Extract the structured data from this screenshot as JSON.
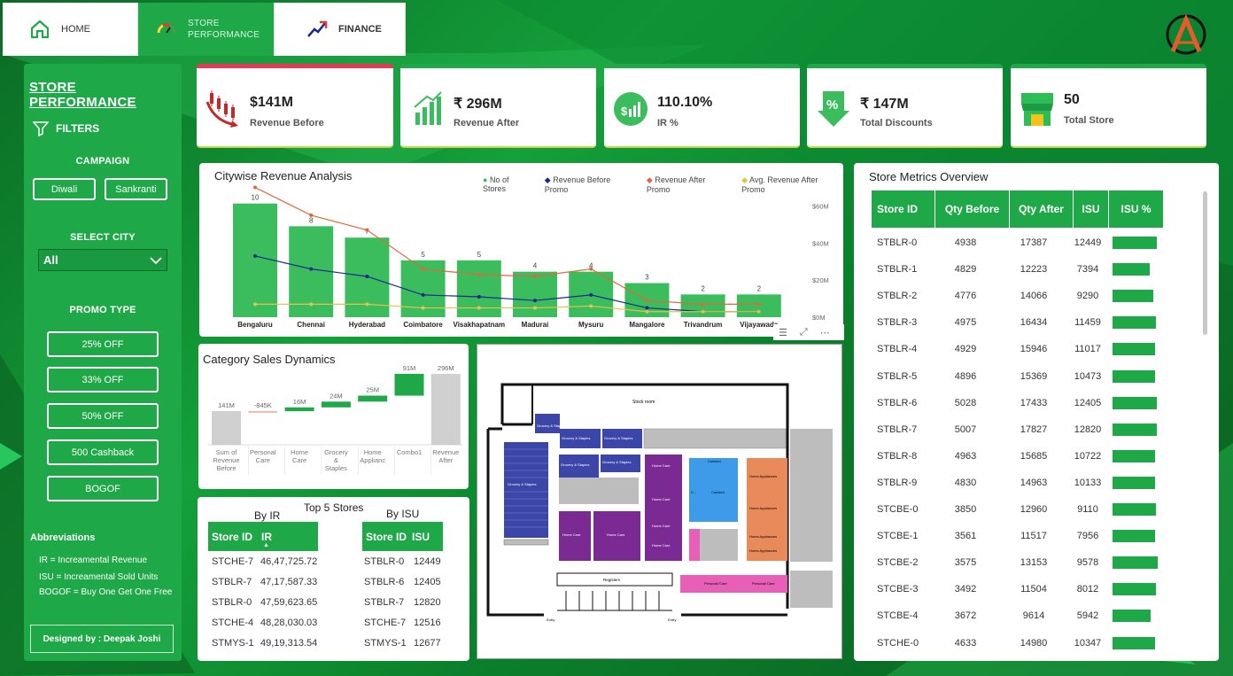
{
  "nav": {
    "home": "HOME",
    "store_performance": "STORE\nPERFORMANCE",
    "finance": "FINANCE"
  },
  "filters": {
    "title": "STORE PERFORMANCE",
    "filters_label": "FILTERS",
    "campaign_label": "CAMPAIGN",
    "campaigns": [
      "Diwali",
      "Sankranti"
    ],
    "city_label": "SELECT CITY",
    "city_value": "All",
    "promo_label": "PROMO TYPE",
    "promo_types": [
      "25% OFF",
      "33% OFF",
      "50% OFF",
      "500 Cashback",
      "BOGOF"
    ],
    "abbr_title": "Abbreviations",
    "abbr": [
      "IR = Increamental Revenue",
      "ISU = Increamental Sold Units",
      "BOGOF = Buy One Get One Free"
    ],
    "designed_by": "Designed by : Deepak Joshi"
  },
  "kpis": [
    {
      "value": "$141M",
      "label": "Revenue Before",
      "icon": "candlestick-down-icon"
    },
    {
      "value": "₹ 296M",
      "label": "Revenue After",
      "icon": "bar-growth-icon"
    },
    {
      "value": "110.10%",
      "label": "IR %",
      "icon": "money-growth-icon"
    },
    {
      "value": "₹ 147M",
      "label": "Total Discounts",
      "icon": "discount-tag-icon"
    },
    {
      "value": "50",
      "label": "Total Store",
      "icon": "store-icon"
    }
  ],
  "city_chart": {
    "title": "Citywise Revenue Analysis",
    "legend": [
      "No of Stores",
      "Revenue Before Promo",
      "Revenue After Promo",
      "Avg. Revenue After Promo"
    ],
    "y_ticks": [
      "$60M",
      "$40M",
      "$20M",
      "$0M"
    ]
  },
  "chart_data": [
    {
      "type": "bar",
      "title": "Citywise Revenue Analysis",
      "categories": [
        "Bengaluru",
        "Chennai",
        "Hyderabad",
        "Coimbatore",
        "Visakhapatnam",
        "Madurai",
        "Mysuru",
        "Mangalore",
        "Trivandrum",
        "Vijayawada"
      ],
      "ylim": [
        0,
        65
      ],
      "legend_position": "top-right",
      "series": [
        {
          "name": "No of Stores",
          "type": "bar",
          "color": "#3bbd5e",
          "values": [
            10,
            8,
            7,
            5,
            5,
            4,
            4,
            3,
            2,
            2
          ]
        },
        {
          "name": "Revenue Before Promo",
          "type": "line",
          "color": "#1a2a8c",
          "values": [
            33,
            26,
            22,
            12,
            11,
            9,
            12,
            5,
            3,
            3
          ]
        },
        {
          "name": "Revenue After Promo",
          "type": "line",
          "color": "#e2673a",
          "values": [
            70,
            55,
            47,
            26,
            23,
            22,
            26,
            9,
            7,
            7
          ]
        },
        {
          "name": "Avg. Revenue After Promo",
          "type": "line",
          "color": "#e6c24a",
          "values": [
            7,
            7,
            7,
            5,
            5,
            5,
            6,
            3,
            3,
            3
          ]
        }
      ]
    },
    {
      "type": "bar",
      "subtype": "waterfall",
      "title": "Category Sales Dynamics",
      "categories": [
        "Sum of Revenue Before",
        "Personal Care",
        "Home Care",
        "Grocery & Staples",
        "Home Applianc",
        "Combo1",
        "Revenue After"
      ],
      "values": [
        141,
        -0.845,
        16,
        24,
        25,
        91,
        296
      ],
      "labels": [
        "141M",
        "-845K",
        "16M",
        "24M",
        "25M",
        "91M",
        "296M"
      ]
    }
  ],
  "category": {
    "title": "Category Sales Dynamics",
    "bars": [
      {
        "label": "141M",
        "cat": [
          "Sum of",
          "Revenue",
          "Before"
        ]
      },
      {
        "label": "-845K",
        "cat": [
          "Personal",
          "Care"
        ]
      },
      {
        "label": "16M",
        "cat": [
          "Home",
          "Care"
        ]
      },
      {
        "label": "24M",
        "cat": [
          "Grocery",
          "&",
          "Staples"
        ]
      },
      {
        "label": "25M",
        "cat": [
          "Home",
          "Applianc"
        ]
      },
      {
        "label": "91M",
        "cat": [
          "Combo1"
        ]
      },
      {
        "label": "296M",
        "cat": [
          "Revenue",
          "After"
        ]
      }
    ]
  },
  "top5": {
    "title": "Top 5 Stores",
    "by_ir": {
      "caption": "By IR",
      "headers": [
        "Store ID",
        "IR"
      ],
      "rows": [
        [
          "STCHE-7",
          "46,47,725.72"
        ],
        [
          "STBLR-7",
          "47,17,587.33"
        ],
        [
          "STBLR-0",
          "47,59,623.65"
        ],
        [
          "STCHE-4",
          "48,28,030.03"
        ],
        [
          "STMYS-1",
          "49,19,313.54"
        ]
      ]
    },
    "by_isu": {
      "caption": "By ISU",
      "headers": [
        "Store ID",
        "ISU"
      ],
      "rows": [
        [
          "STBLR-0",
          "12449"
        ],
        [
          "STBLR-6",
          "12405"
        ],
        [
          "STBLR-7",
          "12820"
        ],
        [
          "STCHE-7",
          "12516"
        ],
        [
          "STMYS-1",
          "12677"
        ]
      ]
    }
  },
  "floorplan": {
    "stock_room": "Stock room",
    "grocery": "Grocery & Staples",
    "home_care": "Home Care",
    "combo": "Combo1",
    "home_appliances": "Home Appliances",
    "personal_care": "Personal Care",
    "registers": "Registers",
    "entry": "Entry",
    "combo_short": "C..."
  },
  "metrics": {
    "title": "Store Metrics Overview",
    "headers": [
      "Store ID",
      "Qty Before",
      "Qty After",
      "ISU",
      "ISU %"
    ],
    "rows": [
      {
        "id": "STBLR-0",
        "before": "4938",
        "after": "17387",
        "isu": "12449",
        "pct": 0.72
      },
      {
        "id": "STBLR-1",
        "before": "4829",
        "after": "12223",
        "isu": "7394",
        "pct": 0.6
      },
      {
        "id": "STBLR-2",
        "before": "4776",
        "after": "14066",
        "isu": "9290",
        "pct": 0.66
      },
      {
        "id": "STBLR-3",
        "before": "4975",
        "after": "16434",
        "isu": "11459",
        "pct": 0.7
      },
      {
        "id": "STBLR-4",
        "before": "4929",
        "after": "15946",
        "isu": "11017",
        "pct": 0.69
      },
      {
        "id": "STBLR-5",
        "before": "4896",
        "after": "15369",
        "isu": "10473",
        "pct": 0.68
      },
      {
        "id": "STBLR-6",
        "before": "5028",
        "after": "17433",
        "isu": "12405",
        "pct": 0.71
      },
      {
        "id": "STBLR-7",
        "before": "5007",
        "after": "17827",
        "isu": "12820",
        "pct": 0.72
      },
      {
        "id": "STBLR-8",
        "before": "4963",
        "after": "15685",
        "isu": "10722",
        "pct": 0.68
      },
      {
        "id": "STBLR-9",
        "before": "4830",
        "after": "14963",
        "isu": "10133",
        "pct": 0.68
      },
      {
        "id": "STCBE-0",
        "before": "3850",
        "after": "12960",
        "isu": "9110",
        "pct": 0.7
      },
      {
        "id": "STCBE-1",
        "before": "3561",
        "after": "11517",
        "isu": "7956",
        "pct": 0.69
      },
      {
        "id": "STCBE-2",
        "before": "3575",
        "after": "13153",
        "isu": "9578",
        "pct": 0.73
      },
      {
        "id": "STCBE-3",
        "before": "3492",
        "after": "11504",
        "isu": "8012",
        "pct": 0.7
      },
      {
        "id": "STCBE-4",
        "before": "3672",
        "after": "9614",
        "isu": "5942",
        "pct": 0.62
      },
      {
        "id": "STCHE-0",
        "before": "4633",
        "after": "14980",
        "isu": "10347",
        "pct": 0.69
      }
    ]
  },
  "colors": {
    "brand": "#1fa847",
    "dark_green": "#0a6b24",
    "blue": "#1a2a8c",
    "orange": "#e2673a",
    "gold": "#e6c24a"
  }
}
